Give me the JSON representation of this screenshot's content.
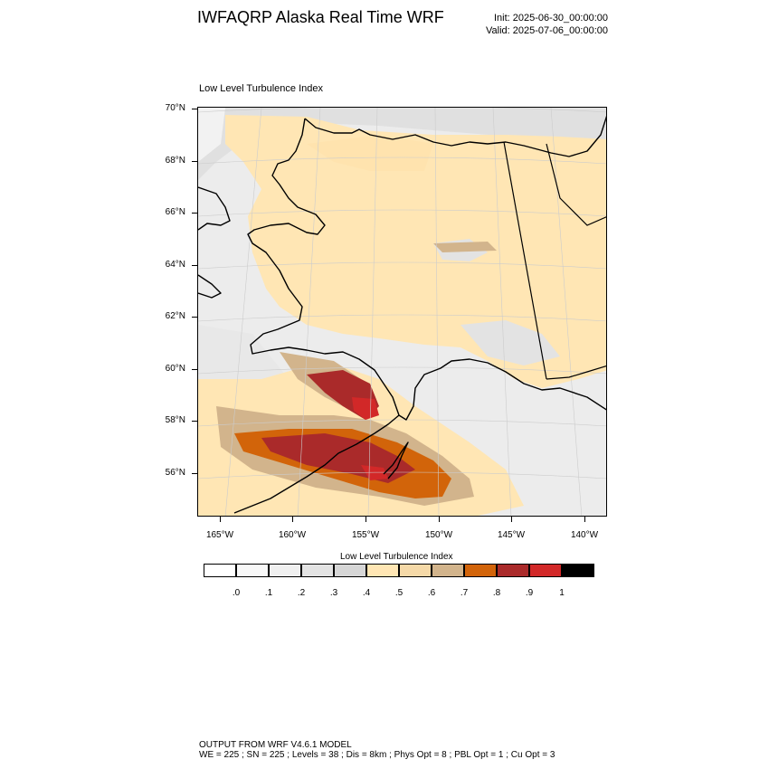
{
  "header": {
    "title": "IWFAQRP Alaska Real Time WRF",
    "init": "Init: 2025-06-30_00:00:00",
    "valid": "Valid: 2025-07-06_00:00:00"
  },
  "plot": {
    "title": "Low Level Turbulence Index",
    "lat_labels": [
      "70°N",
      "68°N",
      "66°N",
      "64°N",
      "62°N",
      "60°N",
      "58°N",
      "56°N"
    ],
    "lon_labels": [
      "165°W",
      "160°W",
      "155°W",
      "150°W",
      "145°W",
      "140°W"
    ]
  },
  "colorbar": {
    "title": "Low Level Turbulence Index",
    "labels": [
      ".0",
      ".1",
      ".2",
      ".3",
      ".4",
      ".5",
      ".6",
      ".7",
      ".8",
      ".9",
      "1"
    ],
    "colors": [
      "#ffffff",
      "#f8f8f8",
      "#f0f0f0",
      "#e3e3e3",
      "#d6d6d6",
      "#ffe6b4",
      "#f5d9a8",
      "#d2b48c",
      "#d2640a",
      "#aa2a2a",
      "#d22828",
      "#000000"
    ]
  },
  "footer": {
    "line1": "OUTPUT FROM WRF V4.6.1 MODEL",
    "line2": "WE = 225 ; SN = 225 ; Levels = 38 ; Dis = 8km ; Phys Opt = 8 ; PBL Opt = 1 ; Cu Opt = 3"
  }
}
